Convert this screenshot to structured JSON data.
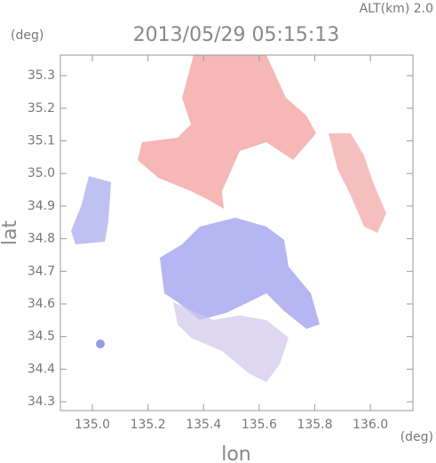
{
  "chart_data": {
    "type": "radar-map",
    "title": "2013/05/29 05:15:13",
    "subtitle": "ALT(km) 2.0",
    "x_label": "lon",
    "y_label": "lat",
    "x_unit": "(deg)",
    "y_unit": "(deg)",
    "xlim": [
      134.885,
      136.153
    ],
    "ylim": [
      34.273,
      35.363
    ],
    "xticks": [
      {
        "value": 135,
        "label": "135.0"
      },
      135.2,
      135.4,
      135.6,
      135.8,
      {
        "value": 136,
        "label": "136.0"
      }
    ],
    "yticks": [
      34.3,
      34.4,
      34.5,
      34.6,
      34.7,
      34.8,
      34.9,
      {
        "value": 35,
        "label": "35.0"
      },
      35.1,
      35.2,
      35.3
    ],
    "grid": false
  }
}
